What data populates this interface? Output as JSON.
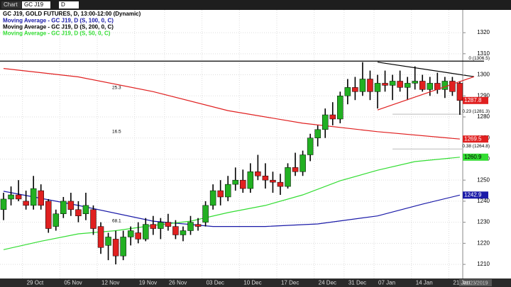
{
  "toolbar": {
    "tab": "Chart",
    "symbol": "GC J19",
    "interval": "D"
  },
  "cursor_date": "01/23/2019",
  "chart_data": {
    "type": "candlestick",
    "title": "GC J19, GOLD FUTURES, D, 13:00-12:00 (Dynamic)",
    "categories": [
      null,
      null,
      null,
      "29 Oct",
      null,
      null,
      null,
      null,
      "05 Nov",
      null,
      null,
      null,
      null,
      "12 Nov",
      null,
      null,
      null,
      null,
      "19 Nov",
      null,
      null,
      null,
      "26 Nov",
      null,
      null,
      null,
      null,
      "03 Dec",
      null,
      null,
      null,
      null,
      "10 Dec",
      null,
      null,
      null,
      null,
      "17 Dec",
      null,
      null,
      null,
      null,
      "24 Dec",
      null,
      null,
      null,
      "31 Dec",
      null,
      null,
      null,
      "07 Jan",
      null,
      null,
      null,
      null,
      "14 Jan",
      null,
      null,
      null,
      null,
      "21 Jan",
      null
    ],
    "open": [
      1236,
      1241,
      1243,
      1240,
      1238,
      1245,
      1240,
      1228,
      1234,
      1240,
      1236,
      1234,
      1236,
      1228,
      1219,
      1222,
      1214,
      1223,
      1225,
      1222,
      1229,
      1227,
      1230,
      1228,
      1224,
      1226,
      1229,
      1230,
      1238,
      1245,
      1242,
      1248,
      1250,
      1246,
      1254,
      1252,
      1250,
      1249,
      1247,
      1256,
      1254,
      1262,
      1270,
      1274,
      1281,
      1279,
      1290,
      1294,
      1292,
      1298,
      1292,
      1296,
      1295,
      1297,
      1294,
      1296,
      1297,
      1293,
      1296,
      1293,
      1297,
      1296
    ],
    "high": [
      1244,
      1247,
      1250,
      1245,
      1252,
      1248,
      1241,
      1236,
      1242,
      1244,
      1240,
      1244,
      1238,
      1230,
      1225,
      1226,
      1226,
      1228,
      1230,
      1232,
      1233,
      1232,
      1234,
      1231,
      1228,
      1233,
      1232,
      1240,
      1248,
      1250,
      1252,
      1256,
      1255,
      1258,
      1262,
      1258,
      1254,
      1253,
      1258,
      1263,
      1264,
      1272,
      1276,
      1284,
      1287,
      1292,
      1298,
      1299,
      1306,
      1302,
      1300,
      1302,
      1300,
      1302,
      1299,
      1304,
      1300,
      1299,
      1301,
      1299,
      1299,
      1297
    ],
    "low": [
      1231,
      1238,
      1240,
      1236,
      1236,
      1236,
      1225,
      1226,
      1232,
      1233,
      1230,
      1231,
      1224,
      1215,
      1212,
      1210,
      1212,
      1219,
      1220,
      1221,
      1224,
      1222,
      1226,
      1222,
      1221,
      1224,
      1226,
      1228,
      1236,
      1238,
      1240,
      1245,
      1244,
      1244,
      1250,
      1246,
      1244,
      1243,
      1246,
      1252,
      1252,
      1259,
      1266,
      1270,
      1276,
      1277,
      1286,
      1288,
      1290,
      1288,
      1284,
      1292,
      1288,
      1292,
      1288,
      1293,
      1292,
      1290,
      1291,
      1289,
      1290,
      1281
    ],
    "close": [
      1241,
      1243,
      1241,
      1238,
      1246,
      1238,
      1227,
      1234,
      1240,
      1236,
      1233,
      1238,
      1227,
      1218,
      1223,
      1214,
      1223,
      1226,
      1222,
      1229,
      1227,
      1230,
      1228,
      1224,
      1226,
      1230,
      1228,
      1238,
      1245,
      1242,
      1248,
      1250,
      1246,
      1254,
      1252,
      1250,
      1249,
      1247,
      1256,
      1254,
      1262,
      1270,
      1274,
      1281,
      1279,
      1290,
      1294,
      1292,
      1298,
      1292,
      1296,
      1295,
      1297,
      1294,
      1296,
      1297,
      1293,
      1296,
      1293,
      1297,
      1292,
      1287.8
    ],
    "up_color": "#22b022",
    "down_color": "#e02020",
    "overlays": [
      {
        "name": "Moving Average - GC J19, D (S, 100, 0, C)",
        "color": "#1a1aa8",
        "x": [
          0,
          10,
          20,
          28,
          35,
          42,
          50,
          56,
          61
        ],
        "values": [
          1244.7,
          1238,
          1230.5,
          1228,
          1228,
          1229.2,
          1233,
          1238.6,
          1242.9
        ]
      },
      {
        "name": "Moving Average - GC J19, D (S, 200, 0, C)",
        "color": "#e02020",
        "x": [
          0,
          10,
          20,
          30,
          40,
          50,
          61
        ],
        "values": [
          1303,
          1299,
          1292,
          1283,
          1277,
          1273,
          1269.5
        ]
      },
      {
        "name": "Moving Average - GC J19, D (S, 50, 0, C)",
        "color": "#33dd33",
        "x": [
          0,
          5,
          10,
          15,
          20,
          25,
          30,
          35,
          40,
          45,
          50,
          55,
          61
        ],
        "values": [
          1217,
          1221,
          1224.5,
          1226,
          1228.5,
          1230.5,
          1234.6,
          1238,
          1243,
          1249.7,
          1254.7,
          1258.8,
          1260.9
        ]
      }
    ],
    "trendlines": [
      {
        "color": "#000000",
        "x": [
          50,
          62.9
        ],
        "values": [
          1306,
          1299.1
        ]
      },
      {
        "color": "#e02020",
        "x": [
          50,
          62.9
        ],
        "values": [
          1283.3,
          1299.1
        ]
      }
    ],
    "fib_levels": [
      {
        "value": 1306.5,
        "label": "0 (1306.5)"
      },
      {
        "value": 1281.3,
        "label": "0.23 (1281.3)"
      },
      {
        "value": 1264.8,
        "label": "0.38 (1264.8)"
      }
    ],
    "side_labels": [
      "25.3",
      "16.5",
      "68.1"
    ],
    "ylim": [
      1203.3,
      1330.8
    ],
    "yticks": [
      1210,
      1220,
      1230,
      1240,
      1250,
      1260,
      1270,
      1280,
      1290,
      1300,
      1310,
      1320
    ],
    "grid": true
  }
}
